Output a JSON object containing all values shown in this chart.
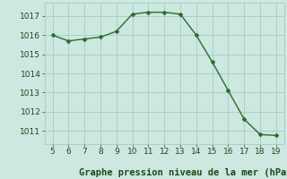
{
  "x": [
    5,
    6,
    7,
    8,
    9,
    10,
    11,
    12,
    13,
    14,
    15,
    16,
    17,
    18,
    19
  ],
  "y": [
    1016.0,
    1015.7,
    1015.8,
    1015.9,
    1016.2,
    1017.1,
    1017.2,
    1017.2,
    1017.1,
    1016.0,
    1014.6,
    1013.1,
    1011.6,
    1010.8,
    1010.75
  ],
  "line_color": "#2d6a2d",
  "marker_color": "#2d6a2d",
  "bg_color": "#cce8e0",
  "grid_color": "#9ec8be",
  "xlabel": "Graphe pression niveau de la mer (hPa)",
  "xlabel_color": "#1a4a1a",
  "xticks": [
    5,
    6,
    7,
    8,
    9,
    10,
    11,
    12,
    13,
    14,
    15,
    16,
    17,
    18,
    19
  ],
  "yticks": [
    1011,
    1012,
    1013,
    1014,
    1015,
    1016,
    1017
  ],
  "ylim": [
    1010.3,
    1017.7
  ],
  "xlim": [
    4.5,
    19.5
  ],
  "tick_color": "#1a4a1a",
  "tick_fontsize": 6.5,
  "xlabel_fontsize": 7.5,
  "fig_width": 3.2,
  "fig_height": 2.0,
  "dpi": 100
}
